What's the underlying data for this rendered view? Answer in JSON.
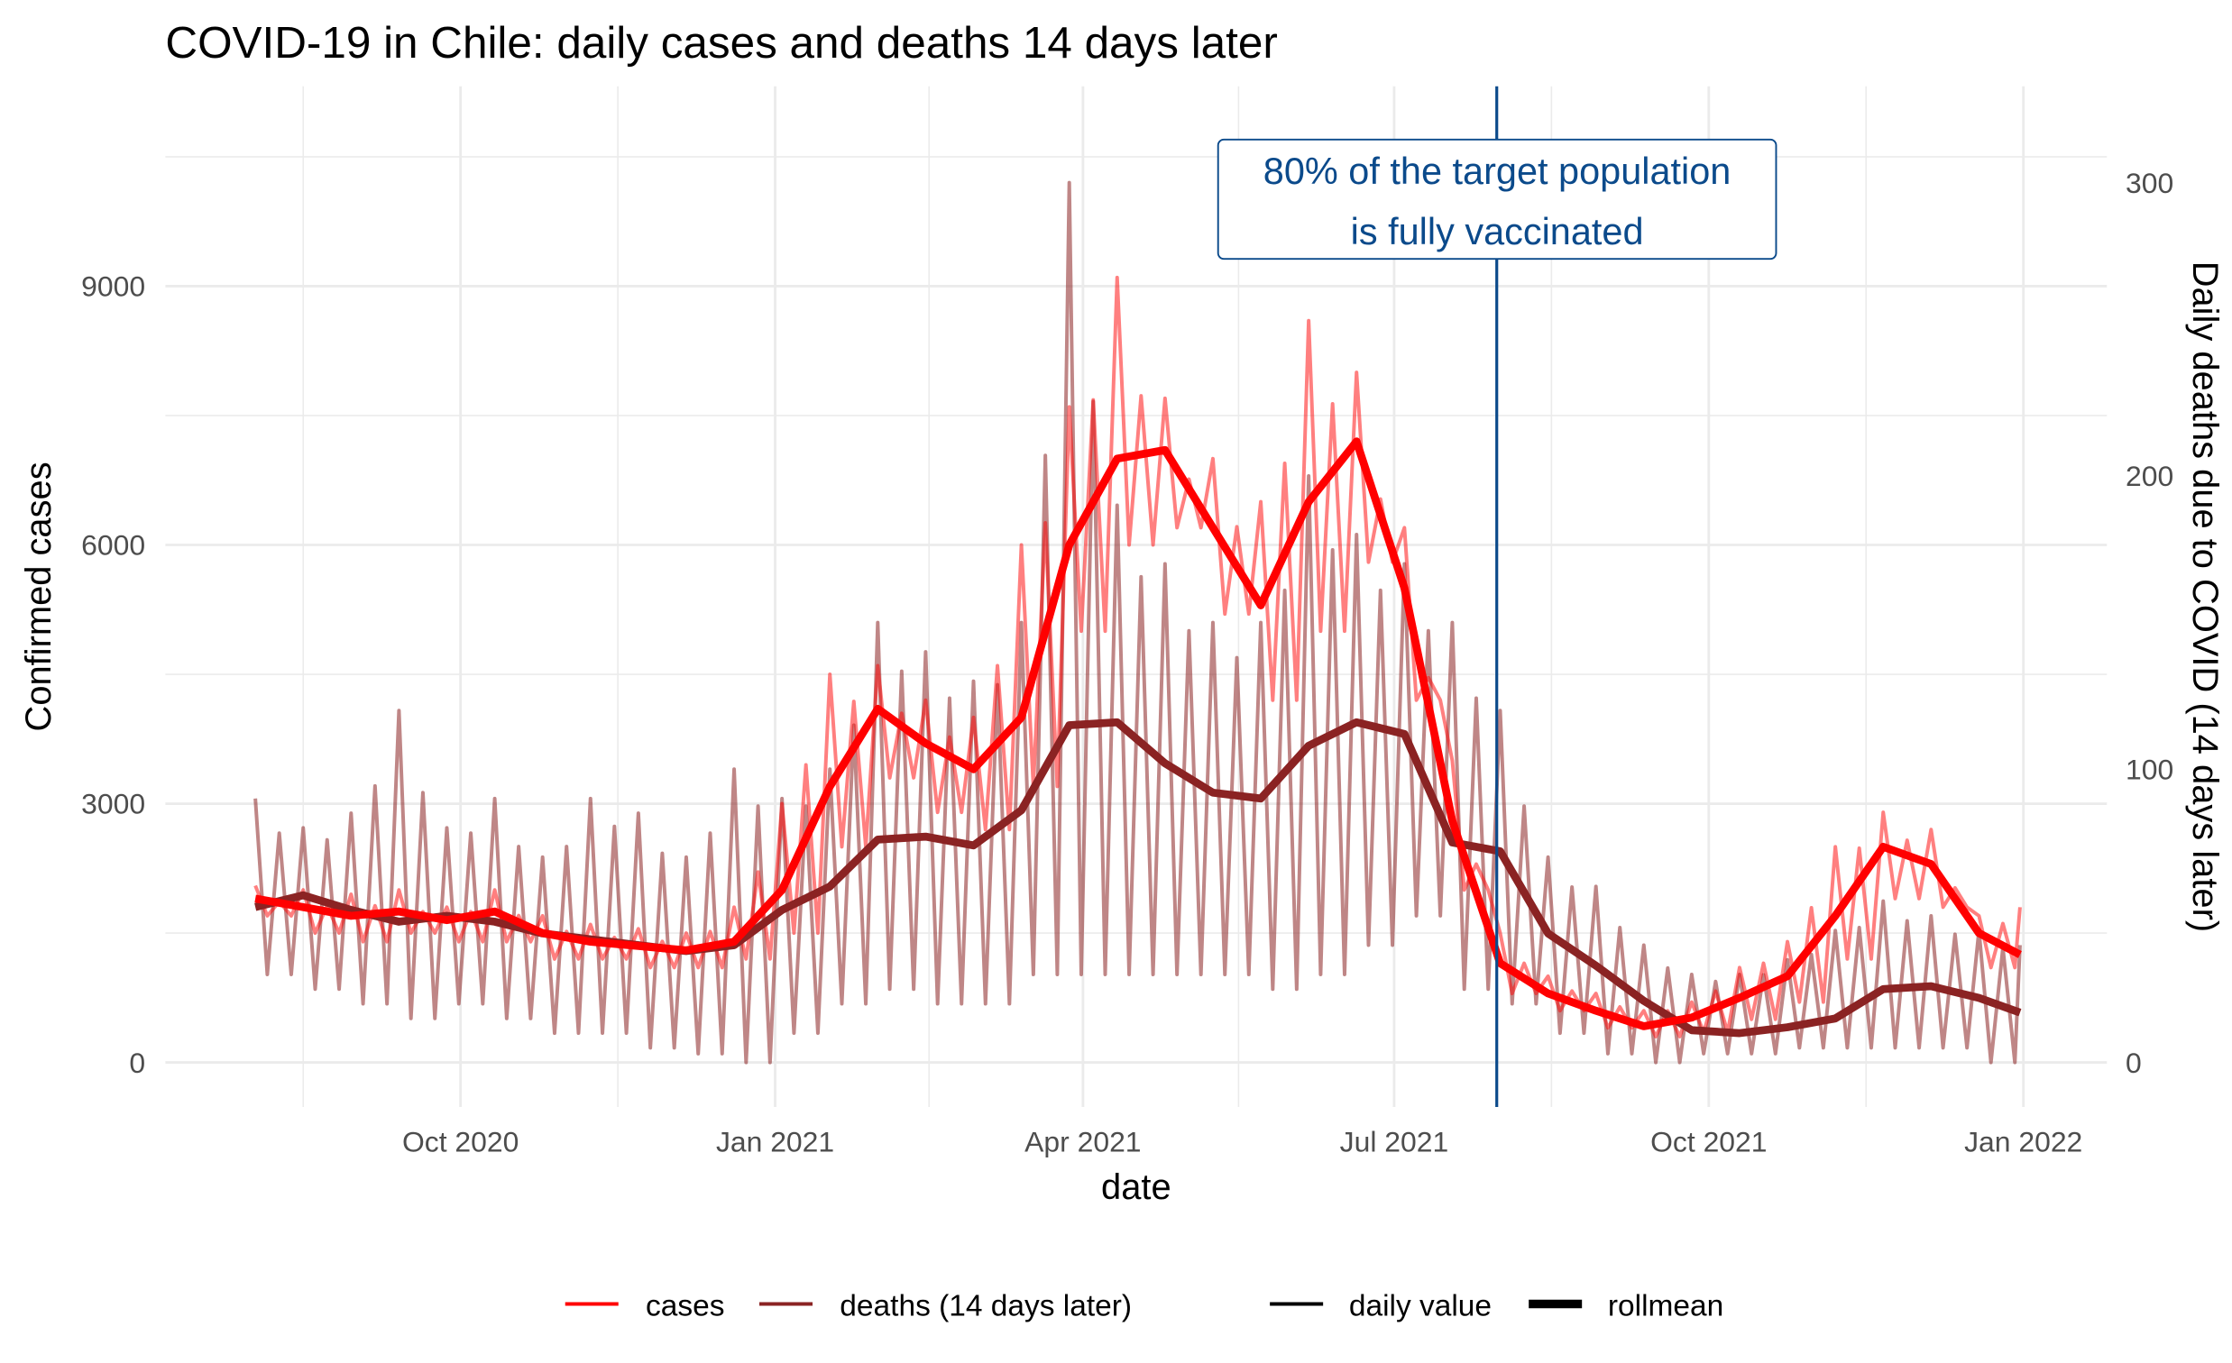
{
  "chart_data": {
    "type": "line",
    "title": "COVID-19 in Chile: daily cases and deaths 14 days later",
    "xlabel": "date",
    "ylabel": "Confirmed cases",
    "ylabel_right": "Daily deaths due to COVID (14 days later)",
    "x_ticks": [
      "Oct 2020",
      "Jan 2021",
      "Apr 2021",
      "Jul 2021",
      "Oct 2021",
      "Jan 2022"
    ],
    "x_tick_dates": [
      "2020-10-01",
      "2021-01-01",
      "2021-04-01",
      "2021-07-01",
      "2021-10-01",
      "2022-01-01"
    ],
    "y_ticks": [
      "0",
      "3000",
      "6000",
      "9000"
    ],
    "y_right_ticks": [
      "0",
      "100",
      "200",
      "300"
    ],
    "ylim": [
      -500,
      10800
    ],
    "ylim_right": [
      -15,
      317
    ],
    "grid": true,
    "legend_position": "bottom",
    "legend": {
      "colour": [
        {
          "label": "cases",
          "color": "#ff0000"
        },
        {
          "label": "deaths (14 days later)",
          "color": "#8b2323"
        }
      ],
      "linewidth": [
        {
          "label": "daily value"
        },
        {
          "label": "rollmean"
        }
      ]
    },
    "annotation": {
      "line1": "80% of the target population",
      "line2": "is fully vaccinated",
      "date": "2021-07-31",
      "color": "#0b4a8b"
    },
    "x": [
      "2020-08-02",
      "2020-08-16",
      "2020-08-30",
      "2020-09-13",
      "2020-09-27",
      "2020-10-11",
      "2020-10-25",
      "2020-11-08",
      "2020-11-22",
      "2020-12-06",
      "2020-12-20",
      "2021-01-03",
      "2021-01-17",
      "2021-01-31",
      "2021-02-14",
      "2021-02-28",
      "2021-03-14",
      "2021-03-28",
      "2021-04-11",
      "2021-04-25",
      "2021-05-09",
      "2021-05-23",
      "2021-06-06",
      "2021-06-20",
      "2021-07-04",
      "2021-07-18",
      "2021-08-01",
      "2021-08-15",
      "2021-08-29",
      "2021-09-12",
      "2021-09-26",
      "2021-10-10",
      "2021-10-24",
      "2021-11-07",
      "2021-11-21",
      "2021-12-05",
      "2021-12-19",
      "2021-12-31"
    ],
    "series": [
      {
        "name": "cases",
        "kind": "rollmean",
        "axis": "left",
        "color": "#ff0000",
        "values": [
          1900,
          1800,
          1700,
          1750,
          1650,
          1750,
          1500,
          1400,
          1350,
          1300,
          1400,
          2000,
          3200,
          4100,
          3700,
          3400,
          4000,
          6000,
          7000,
          7100,
          6200,
          5300,
          6500,
          7200,
          5500,
          2800,
          1150,
          800,
          600,
          420,
          520,
          750,
          1000,
          1700,
          2500,
          2300,
          1500,
          1250
        ]
      },
      {
        "name": "cases",
        "kind": "daily value high",
        "axis": "left",
        "color": "#ff0000",
        "values": [
          2050,
          2000,
          1950,
          2000,
          1800,
          2000,
          1700,
          1600,
          1550,
          1500,
          1800,
          3000,
          4500,
          4600,
          4200,
          4000,
          6000,
          7600,
          9100,
          7700,
          7000,
          6500,
          8600,
          8000,
          6200,
          3500,
          1500,
          1000,
          800,
          600,
          700,
          1100,
          1400,
          2500,
          2900,
          2700,
          1700,
          1800
        ]
      },
      {
        "name": "cases",
        "kind": "daily value low",
        "axis": "left",
        "color": "#ff0000",
        "values": [
          1700,
          1500,
          1400,
          1500,
          1400,
          1400,
          1200,
          1200,
          1100,
          1100,
          1200,
          1500,
          2500,
          3300,
          2900,
          2700,
          3200,
          5000,
          6000,
          6200,
          5200,
          4200,
          5000,
          5800,
          4200,
          2000,
          800,
          600,
          400,
          300,
          350,
          500,
          700,
          1200,
          1900,
          1800,
          1100,
          800
        ]
      },
      {
        "name": "deaths (14 days later)",
        "kind": "rollmean",
        "axis": "right",
        "color": "#8b2323",
        "values": [
          53,
          57,
          52,
          48,
          50,
          48,
          44,
          42,
          40,
          38,
          40,
          52,
          60,
          76,
          77,
          74,
          86,
          115,
          116,
          102,
          92,
          90,
          108,
          116,
          112,
          75,
          72,
          44,
          33,
          21,
          11,
          10,
          12,
          15,
          25,
          26,
          22,
          17
        ]
      },
      {
        "name": "deaths (14 days later)",
        "kind": "daily value high",
        "axis": "right",
        "color": "#8b2323",
        "values": [
          90,
          80,
          85,
          120,
          80,
          90,
          70,
          90,
          85,
          70,
          100,
          90,
          100,
          150,
          140,
          130,
          150,
          300,
          190,
          170,
          150,
          150,
          200,
          180,
          170,
          150,
          120,
          70,
          60,
          40,
          30,
          30,
          35,
          45,
          55,
          50,
          45,
          40
        ]
      },
      {
        "name": "deaths (14 days later)",
        "kind": "daily value low",
        "axis": "right",
        "color": "#8b2323",
        "values": [
          30,
          25,
          20,
          15,
          20,
          15,
          10,
          10,
          5,
          3,
          0,
          10,
          20,
          25,
          20,
          20,
          30,
          30,
          30,
          30,
          30,
          25,
          30,
          40,
          50,
          25,
          20,
          10,
          3,
          0,
          3,
          3,
          5,
          5,
          5,
          5,
          0,
          0
        ]
      }
    ]
  }
}
